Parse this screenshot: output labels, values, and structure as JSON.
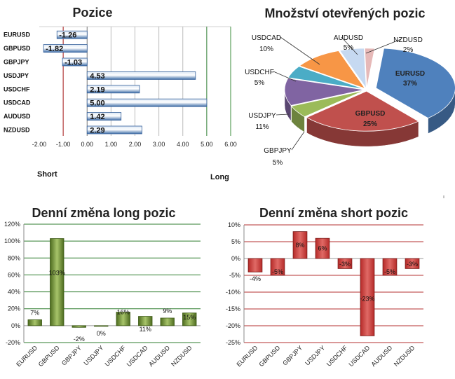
{
  "chart_data": [
    {
      "id": "positions",
      "type": "bar",
      "orientation": "horizontal",
      "title": "Pozice",
      "categories": [
        "EURUSD",
        "GBPUSD",
        "GBPJPY",
        "USDJPY",
        "USDCHF",
        "USDCAD",
        "AUDUSD",
        "NZDUSD"
      ],
      "values": [
        -1.26,
        -1.82,
        -1.03,
        4.53,
        2.19,
        5.0,
        1.42,
        2.29
      ],
      "value_labels": [
        "-1.26",
        "-1.82",
        "-1.03",
        "4.53",
        "2.19",
        "5.00",
        "1.42",
        "2.29"
      ],
      "xlim": [
        -2.0,
        6.0
      ],
      "xticks": [
        "-2.00",
        "-1.00",
        "0.00",
        "1.00",
        "2.00",
        "3.00",
        "4.00",
        "5.00",
        "6.00"
      ],
      "left_label": "Short",
      "right_label": "Long",
      "grid": true
    },
    {
      "id": "open-positions",
      "type": "pie",
      "title": "Množství otevřených pozic",
      "slices": [
        {
          "label": "EURUSD",
          "value": 37,
          "text": "37%",
          "color": "#4f81bd"
        },
        {
          "label": "GBPUSD",
          "value": 25,
          "text": "25%",
          "color": "#c0504d"
        },
        {
          "label": "GBPJPY",
          "value": 5,
          "text": "5%",
          "color": "#9bbb59"
        },
        {
          "label": "USDJPY",
          "value": 11,
          "text": "11%",
          "color": "#8064a2"
        },
        {
          "label": "USDCHF",
          "value": 5,
          "text": "5%",
          "color": "#4bacc6"
        },
        {
          "label": "USDCAD",
          "value": 10,
          "text": "10%",
          "color": "#f79646"
        },
        {
          "label": "AUDUSD",
          "value": 5,
          "text": "5%",
          "color": "#c6d9f1"
        },
        {
          "label": "NZDUSD",
          "value": 2,
          "text": "2%",
          "color": "#e6b9b8"
        }
      ]
    },
    {
      "id": "long-change",
      "type": "bar",
      "title": "Denní změna long pozic",
      "categories": [
        "EURUSD",
        "GBPUSD",
        "GBPJPY",
        "USDJPY",
        "USDCHF",
        "USDCAD",
        "AUDUSD",
        "NZDUSD"
      ],
      "values": [
        7,
        103,
        -2,
        0,
        16,
        11,
        9,
        15
      ],
      "value_labels": [
        "7%",
        "103%",
        "-2%",
        "0%",
        "16%",
        "11%",
        "9%",
        "15%"
      ],
      "ylim": [
        -20,
        120
      ],
      "yticks": [
        "-20%",
        "0%",
        "20%",
        "40%",
        "60%",
        "80%",
        "100%",
        "120%"
      ],
      "grid": true
    },
    {
      "id": "short-change",
      "type": "bar",
      "title": "Denní změna short pozic",
      "categories": [
        "EURUSD",
        "GBPUSD",
        "GBPJPY",
        "USDJPY",
        "USDCHF",
        "USDCAD",
        "AUDUSD",
        "NZDUSD"
      ],
      "values": [
        -4,
        -5,
        8,
        6,
        -3,
        -23,
        -5,
        -3
      ],
      "value_labels": [
        "-4%",
        "-5%",
        "8%",
        "6%",
        "-3%",
        "-23%",
        "-5%",
        "-3%"
      ],
      "ylim": [
        -25,
        10
      ],
      "yticks": [
        "-25%",
        "-20%",
        "-15%",
        "-10%",
        "-5%",
        "0%",
        "5%",
        "10%"
      ],
      "grid": true
    }
  ]
}
